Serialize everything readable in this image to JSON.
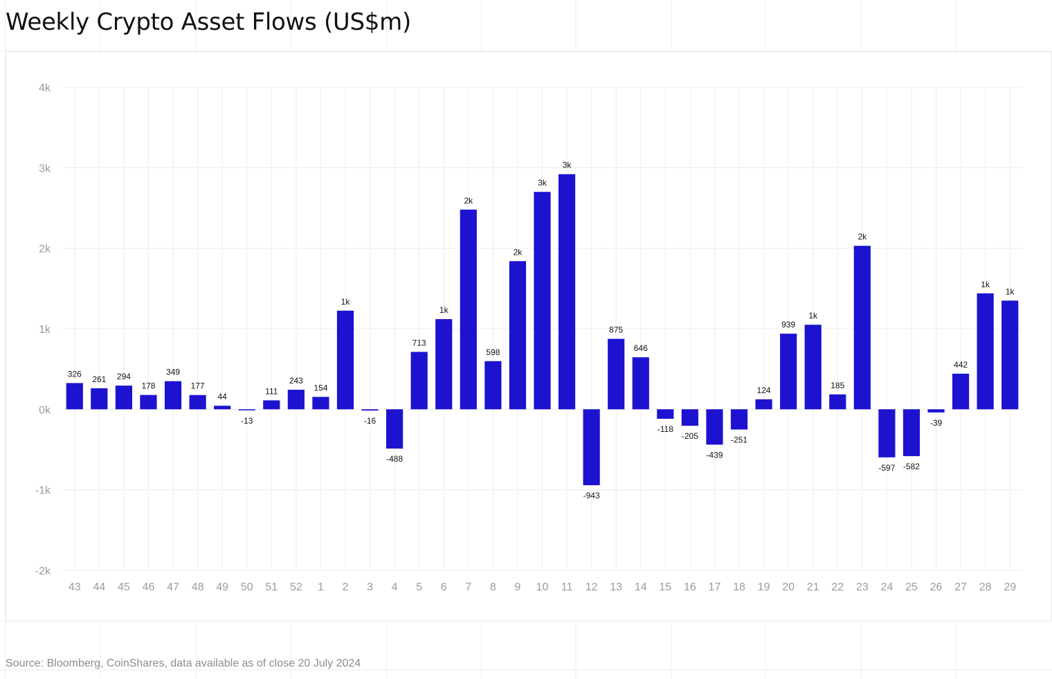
{
  "title": "Weekly Crypto Asset Flows (US$m)",
  "source": "Source: Bloomberg, CoinShares, data available as of close 20 July 2024",
  "colors": {
    "bar": "#1c12d0",
    "grid": "#ececec",
    "axis_text": "#9a9a9a",
    "label_text": "#111111"
  },
  "chart_data": {
    "type": "bar",
    "title": "Weekly Crypto Asset Flows (US$m)",
    "xlabel": "",
    "ylabel": "",
    "ylim": [
      -2000,
      4000
    ],
    "yticks": [
      4000,
      3000,
      2000,
      1000,
      0,
      -1000,
      -2000
    ],
    "ytick_labels": [
      "4k",
      "3k",
      "2k",
      "1k",
      "0k",
      "-1k",
      "-2k"
    ],
    "grid": true,
    "legend": "none",
    "categories": [
      "43",
      "44",
      "45",
      "46",
      "47",
      "48",
      "49",
      "50",
      "51",
      "52",
      "1",
      "2",
      "3",
      "4",
      "5",
      "6",
      "7",
      "8",
      "9",
      "10",
      "11",
      "12",
      "13",
      "14",
      "15",
      "16",
      "17",
      "18",
      "19",
      "20",
      "21",
      "22",
      "23",
      "24",
      "25",
      "26",
      "27",
      "28",
      "29"
    ],
    "values": [
      326,
      261,
      294,
      178,
      349,
      177,
      44,
      -13,
      111,
      243,
      154,
      1225,
      -16,
      -488,
      713,
      1120,
      2480,
      598,
      1840,
      2700,
      2920,
      -943,
      875,
      646,
      -118,
      -205,
      -439,
      -251,
      124,
      939,
      1050,
      185,
      2030,
      -597,
      -582,
      -39,
      442,
      1440,
      1350
    ],
    "data_labels": [
      "326",
      "261",
      "294",
      "178",
      "349",
      "177",
      "44",
      "-13",
      "111",
      "243",
      "154",
      "1k",
      "-16",
      "-488",
      "713",
      "1k",
      "2k",
      "598",
      "2k",
      "3k",
      "3k",
      "-943",
      "875",
      "646",
      "-118",
      "-205",
      "-439",
      "-251",
      "124",
      "939",
      "1k",
      "185",
      "2k",
      "-597",
      "-582",
      "-39",
      "442",
      "1k",
      "1k"
    ]
  }
}
